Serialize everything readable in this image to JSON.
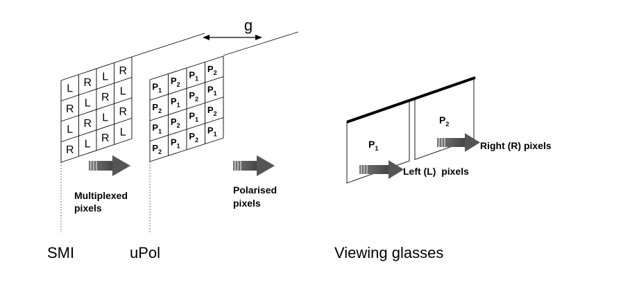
{
  "gap_label": "g",
  "smi": {
    "label": "SMI",
    "grid": [
      [
        "L",
        "R",
        "L",
        "R"
      ],
      [
        "R",
        "L",
        "R",
        "L"
      ],
      [
        "L",
        "R",
        "L",
        "R"
      ],
      [
        "R",
        "L",
        "R",
        "L"
      ]
    ],
    "caption_line1": "Multiplexed",
    "caption_line2": "pixels"
  },
  "upol": {
    "label": "uPol",
    "grid": [
      [
        "1",
        "2",
        "1",
        "2"
      ],
      [
        "2",
        "1",
        "2",
        "1"
      ],
      [
        "1",
        "2",
        "1",
        "2"
      ],
      [
        "2",
        "1",
        "2",
        "1"
      ]
    ],
    "cell_prefix": "P",
    "caption_line1": "Polarised",
    "caption_line2": "pixels"
  },
  "glasses": {
    "label": "Viewing glasses",
    "left_lens": {
      "name": "P",
      "sub": "1",
      "caption": "Left (L)  pixels"
    },
    "right_lens": {
      "name": "P",
      "sub": "2",
      "caption": "Right (R) pixels"
    }
  },
  "colors": {
    "arrow": "#555555",
    "line": "#000000"
  }
}
